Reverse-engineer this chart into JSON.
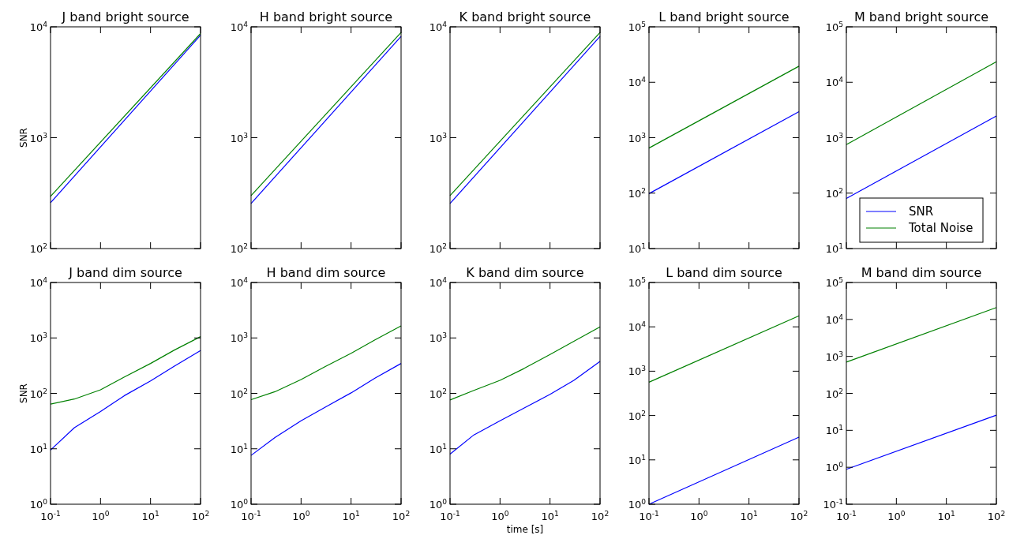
{
  "chart_data": [
    {
      "type": "line",
      "title": "J band bright source",
      "ylabel": "SNR",
      "log": "xy",
      "tick_labels": "y",
      "x": [
        0.1,
        100
      ],
      "xlim": [
        0.1,
        100
      ],
      "ylim": [
        100,
        10000
      ],
      "yticks": [
        {
          "value": 100,
          "label": "10$^{2}$"
        },
        {
          "value": 1000,
          "label": "10$^{3}$"
        },
        {
          "value": 10000,
          "label": "10$^{4}$"
        }
      ],
      "series": [
        {
          "color": "#0000ff",
          "values": [
            259,
            8400
          ]
        },
        {
          "color": "#008000",
          "values": [
            296,
            8700
          ]
        }
      ]
    },
    {
      "type": "line",
      "title": "H band bright source",
      "log": "xy",
      "tick_labels": "y",
      "x": [
        0.1,
        100
      ],
      "xlim": [
        0.1,
        100
      ],
      "ylim": [
        100,
        10000
      ],
      "yticks": [
        {
          "value": 100,
          "label": "10$^{2}$"
        },
        {
          "value": 1000,
          "label": "10$^{3}$"
        },
        {
          "value": 10000,
          "label": "10$^{4}$"
        }
      ],
      "series": [
        {
          "color": "#0000ff",
          "values": [
            255,
            8200
          ]
        },
        {
          "color": "#008000",
          "values": [
            300,
            8900
          ]
        }
      ]
    },
    {
      "type": "line",
      "title": "K band bright source",
      "log": "xy",
      "tick_labels": "y",
      "x": [
        0.1,
        100
      ],
      "xlim": [
        0.1,
        100
      ],
      "ylim": [
        100,
        10000
      ],
      "yticks": [
        {
          "value": 100,
          "label": "10$^{2}$"
        },
        {
          "value": 1000,
          "label": "10$^{3}$"
        },
        {
          "value": 10000,
          "label": "10$^{4}$"
        }
      ],
      "series": [
        {
          "color": "#0000ff",
          "values": [
            255,
            8200
          ]
        },
        {
          "color": "#008000",
          "values": [
            300,
            8900
          ]
        }
      ]
    },
    {
      "type": "line",
      "title": "L band bright source",
      "log": "xy",
      "tick_labels": "y",
      "x": [
        0.1,
        100
      ],
      "xlim": [
        0.1,
        100
      ],
      "ylim": [
        10,
        100000
      ],
      "yticks": [
        {
          "value": 10,
          "label": "10$^{1}$"
        },
        {
          "value": 100,
          "label": "10$^{2}$"
        },
        {
          "value": 1000,
          "label": "10$^{3}$"
        },
        {
          "value": 10000,
          "label": "10$^{4}$"
        },
        {
          "value": 100000,
          "label": "10$^{5}$"
        }
      ],
      "series": [
        {
          "color": "#0000ff",
          "values": [
            98,
            2950
          ]
        },
        {
          "color": "#008000",
          "values": [
            650,
            19500
          ]
        }
      ]
    },
    {
      "type": "line",
      "title": "M band bright source",
      "log": "xy",
      "tick_labels": "y",
      "legend": "bottom",
      "x": [
        0.1,
        100
      ],
      "xlim": [
        0.1,
        100
      ],
      "ylim": [
        10,
        100000
      ],
      "yticks": [
        {
          "value": 10,
          "label": "10$^{1}$"
        },
        {
          "value": 100,
          "label": "10$^{2}$"
        },
        {
          "value": 1000,
          "label": "10$^{3}$"
        },
        {
          "value": 10000,
          "label": "10$^{4}$"
        },
        {
          "value": 100000,
          "label": "10$^{5}$"
        }
      ],
      "series": [
        {
          "name": "SNR",
          "color": "#0000ff",
          "values": [
            80,
            2460
          ]
        },
        {
          "name": "Total Noise",
          "color": "#008000",
          "values": [
            750,
            23400
          ]
        }
      ]
    },
    {
      "type": "line",
      "title": "J band dim source",
      "ylabel": "SNR",
      "log": "xy",
      "x": [
        0.1,
        0.3,
        1,
        3,
        10,
        30,
        100
      ],
      "xlim": [
        0.1,
        100
      ],
      "xticks": [
        {
          "value": 0.1,
          "label": "10$^{-1}$"
        },
        {
          "value": 1,
          "label": "10$^{0}$"
        },
        {
          "value": 10,
          "label": "10$^{1}$"
        },
        {
          "value": 100,
          "label": "10$^{2}$"
        }
      ],
      "ylim": [
        1,
        10000
      ],
      "yticks": [
        {
          "value": 1,
          "label": "10$^{0}$"
        },
        {
          "value": 10,
          "label": "10$^{1}$"
        },
        {
          "value": 100,
          "label": "10$^{2}$"
        },
        {
          "value": 1000,
          "label": "10$^{3}$"
        },
        {
          "value": 10000,
          "label": "10$^{4}$"
        }
      ],
      "series": [
        {
          "color": "#0000ff",
          "values": [
            9.5,
            24,
            47,
            91,
            168,
            310,
            590
          ]
        },
        {
          "color": "#008000",
          "values": [
            64,
            79,
            116,
            198,
            346,
            604,
            1055
          ]
        }
      ]
    },
    {
      "type": "line",
      "title": "H band dim source",
      "log": "xy",
      "x": [
        0.1,
        0.3,
        1,
        3,
        10,
        30,
        100
      ],
      "xlim": [
        0.1,
        100
      ],
      "xticks": [
        {
          "value": 0.1,
          "label": "10$^{-1}$"
        },
        {
          "value": 1,
          "label": "10$^{0}$"
        },
        {
          "value": 10,
          "label": "10$^{1}$"
        },
        {
          "value": 100,
          "label": "10$^{2}$"
        }
      ],
      "ylim": [
        1,
        10000
      ],
      "yticks": [
        {
          "value": 1,
          "label": "10$^{0}$"
        },
        {
          "value": 10,
          "label": "10$^{1}$"
        },
        {
          "value": 100,
          "label": "10$^{2}$"
        },
        {
          "value": 1000,
          "label": "10$^{3}$"
        },
        {
          "value": 10000,
          "label": "10$^{4}$"
        }
      ],
      "series": [
        {
          "color": "#0000ff",
          "values": [
            7.6,
            16,
            32,
            56,
            102,
            188,
            346
          ]
        },
        {
          "color": "#008000",
          "values": [
            77,
            107,
            177,
            303,
            528,
            922,
            1645
          ]
        }
      ]
    },
    {
      "type": "line",
      "title": "K band dim source",
      "xlabel": "time [s]",
      "log": "xy",
      "x": [
        0.1,
        0.3,
        1,
        3,
        10,
        30,
        100
      ],
      "xlim": [
        0.1,
        100
      ],
      "xticks": [
        {
          "value": 0.1,
          "label": "10$^{-1}$"
        },
        {
          "value": 1,
          "label": "10$^{0}$"
        },
        {
          "value": 10,
          "label": "10$^{1}$"
        },
        {
          "value": 100,
          "label": "10$^{2}$"
        }
      ],
      "ylim": [
        1,
        10000
      ],
      "yticks": [
        {
          "value": 1,
          "label": "10$^{0}$"
        },
        {
          "value": 10,
          "label": "10$^{1}$"
        },
        {
          "value": 100,
          "label": "10$^{2}$"
        },
        {
          "value": 1000,
          "label": "10$^{3}$"
        },
        {
          "value": 10000,
          "label": "10$^{4}$"
        }
      ],
      "series": [
        {
          "color": "#0000ff",
          "values": [
            8,
            17.8,
            32,
            54,
            96,
            172,
            378
          ]
        },
        {
          "color": "#008000",
          "values": [
            76,
            113,
            172,
            280,
            502,
            870,
            1585
          ]
        }
      ]
    },
    {
      "type": "line",
      "title": "L band dim source",
      "log": "xy",
      "x": [
        0.1,
        100
      ],
      "xlim": [
        0.1,
        100
      ],
      "xticks": [
        {
          "value": 0.1,
          "label": "10$^{-1}$"
        },
        {
          "value": 1,
          "label": "10$^{0}$"
        },
        {
          "value": 10,
          "label": "10$^{1}$"
        },
        {
          "value": 100,
          "label": "10$^{2}$"
        }
      ],
      "ylim": [
        1,
        100000
      ],
      "yticks": [
        {
          "value": 1,
          "label": "10$^{0}$"
        },
        {
          "value": 10,
          "label": "10$^{1}$"
        },
        {
          "value": 100,
          "label": "10$^{2}$"
        },
        {
          "value": 1000,
          "label": "10$^{3}$"
        },
        {
          "value": 10000,
          "label": "10$^{4}$"
        },
        {
          "value": 100000,
          "label": "10$^{5}$"
        }
      ],
      "series": [
        {
          "color": "#0000ff",
          "values": [
            1,
            32.6
          ]
        },
        {
          "color": "#008000",
          "values": [
            565,
            17700
          ]
        }
      ]
    },
    {
      "type": "line",
      "title": "M band dim source",
      "log": "xy",
      "x": [
        0.1,
        100
      ],
      "xlim": [
        0.1,
        100
      ],
      "xticks": [
        {
          "value": 0.1,
          "label": "10$^{-1}$"
        },
        {
          "value": 1,
          "label": "10$^{0}$"
        },
        {
          "value": 10,
          "label": "10$^{1}$"
        },
        {
          "value": 100,
          "label": "10$^{2}$"
        }
      ],
      "ylim": [
        0.1,
        100000
      ],
      "yticks": [
        {
          "value": 0.1,
          "label": "10$^{-1}$"
        },
        {
          "value": 1,
          "label": "10$^{0}$"
        },
        {
          "value": 10,
          "label": "10$^{1}$"
        },
        {
          "value": 100,
          "label": "10$^{2}$"
        },
        {
          "value": 1000,
          "label": "10$^{3}$"
        },
        {
          "value": 10000,
          "label": "10$^{4}$"
        },
        {
          "value": 100000,
          "label": "10$^{5}$"
        }
      ],
      "series": [
        {
          "color": "#0000ff",
          "values": [
            0.88,
            25.7
          ]
        },
        {
          "color": "#008000",
          "values": [
            700,
            21000
          ]
        }
      ]
    }
  ]
}
